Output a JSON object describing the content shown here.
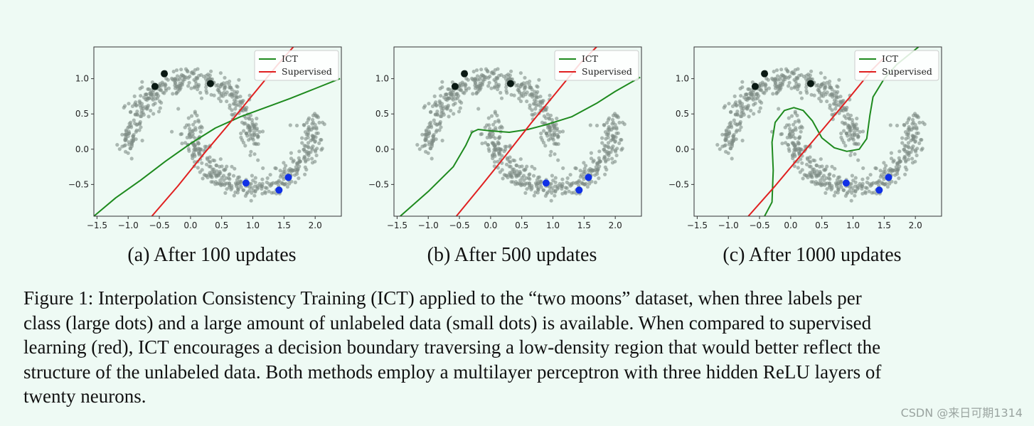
{
  "colors": {
    "unlabeled": "#7f8c85",
    "class0": "#0a1a14",
    "class1": "#1030e6",
    "ict": "#1e8a1e",
    "supervised": "#e02020",
    "plot_bg": "#eefaf4"
  },
  "chart_data": [
    {
      "type": "scatter",
      "xlim": [
        -1.55,
        2.42
      ],
      "ylim": [
        -0.95,
        1.45
      ],
      "x_ticks": [
        -1.5,
        -1.0,
        -0.5,
        0.0,
        0.5,
        1.0,
        1.5,
        2.0
      ],
      "x_tick_labels": [
        "−1.5",
        "−1.0",
        "−0.5",
        "0.0",
        "0.5",
        "1.0",
        "1.5",
        "2.0"
      ],
      "y_ticks": [
        1.0,
        0.5,
        0.0,
        -0.5
      ],
      "y_tick_labels": [
        "1.0",
        "0.5",
        "0.0",
        "−0.5"
      ],
      "legend": {
        "position": "top-right",
        "entries": [
          "ICT",
          "Supervised"
        ]
      },
      "labeled_class0": [
        [
          -0.42,
          1.07
        ],
        [
          -0.57,
          0.89
        ],
        [
          0.32,
          0.93
        ]
      ],
      "labeled_class1": [
        [
          0.89,
          -0.48
        ],
        [
          1.42,
          -0.58
        ],
        [
          1.57,
          -0.4
        ]
      ],
      "series": [
        {
          "name": "ICT",
          "x": [
            -1.55,
            -1.2,
            -0.8,
            -0.4,
            0.0,
            0.4,
            0.8,
            1.2,
            1.6,
            2.0,
            2.4
          ],
          "y": [
            -0.95,
            -0.69,
            -0.44,
            -0.17,
            0.08,
            0.3,
            0.46,
            0.59,
            0.72,
            0.86,
            1.0
          ]
        },
        {
          "name": "Supervised",
          "x": [
            -0.62,
            -0.2,
            0.2,
            0.6,
            1.0,
            1.4,
            1.65
          ],
          "y": [
            -0.95,
            -0.52,
            -0.08,
            0.34,
            0.77,
            1.2,
            1.45
          ]
        }
      ],
      "caption": "(a) After 100 updates"
    },
    {
      "type": "scatter",
      "xlim": [
        -1.55,
        2.42
      ],
      "ylim": [
        -0.95,
        1.45
      ],
      "x_ticks": [
        -1.5,
        -1.0,
        -0.5,
        0.0,
        0.5,
        1.0,
        1.5,
        2.0
      ],
      "x_tick_labels": [
        "−1.5",
        "−1.0",
        "−0.5",
        "0.0",
        "0.5",
        "1.0",
        "1.5",
        "2.0"
      ],
      "y_ticks": [
        1.0,
        0.5,
        0.0,
        -0.5
      ],
      "y_tick_labels": [
        "1.0",
        "0.5",
        "0.0",
        "−0.5"
      ],
      "legend": {
        "position": "top-right",
        "entries": [
          "ICT",
          "Supervised"
        ]
      },
      "labeled_class0": [
        [
          -0.42,
          1.07
        ],
        [
          -0.57,
          0.89
        ],
        [
          0.32,
          0.93
        ]
      ],
      "labeled_class1": [
        [
          0.89,
          -0.48
        ],
        [
          1.42,
          -0.58
        ],
        [
          1.57,
          -0.4
        ]
      ],
      "series": [
        {
          "name": "ICT",
          "x": [
            -1.45,
            -1.0,
            -0.6,
            -0.4,
            -0.3,
            -0.2,
            0.0,
            0.3,
            0.6,
            0.9,
            1.3,
            1.7,
            2.0,
            2.4
          ],
          "y": [
            -0.95,
            -0.6,
            -0.25,
            0.05,
            0.24,
            0.28,
            0.26,
            0.24,
            0.28,
            0.35,
            0.46,
            0.65,
            0.82,
            1.02
          ]
        },
        {
          "name": "Supervised",
          "x": [
            -0.55,
            -0.15,
            0.25,
            0.65,
            1.05,
            1.45,
            1.7
          ],
          "y": [
            -0.95,
            -0.52,
            -0.08,
            0.37,
            0.8,
            1.23,
            1.45
          ]
        }
      ],
      "caption": "(b) After 500 updates"
    },
    {
      "type": "scatter",
      "xlim": [
        -1.55,
        2.42
      ],
      "ylim": [
        -0.95,
        1.45
      ],
      "x_ticks": [
        -1.5,
        -1.0,
        -0.5,
        0.0,
        0.5,
        1.0,
        1.5,
        2.0
      ],
      "x_tick_labels": [
        "−1.5",
        "−1.0",
        "−0.5",
        "0.0",
        "0.5",
        "1.0",
        "1.5",
        "2.0"
      ],
      "y_ticks": [
        1.0,
        0.5,
        0.0,
        -0.5
      ],
      "y_tick_labels": [
        "1.0",
        "0.5",
        "0.0",
        "−0.5"
      ],
      "legend": {
        "position": "top-right",
        "entries": [
          "ICT",
          "Supervised"
        ]
      },
      "labeled_class0": [
        [
          -0.42,
          1.07
        ],
        [
          -0.57,
          0.89
        ],
        [
          0.32,
          0.93
        ]
      ],
      "labeled_class1": [
        [
          0.89,
          -0.48
        ],
        [
          1.42,
          -0.58
        ],
        [
          1.57,
          -0.4
        ]
      ],
      "series": [
        {
          "name": "ICT",
          "x": [
            -0.42,
            -0.3,
            -0.28,
            -0.3,
            -0.25,
            -0.1,
            0.05,
            0.2,
            0.35,
            0.5,
            0.7,
            0.9,
            1.1,
            1.22,
            1.27,
            1.32,
            1.5,
            1.7,
            2.05
          ],
          "y": [
            -0.95,
            -0.75,
            -0.3,
            0.1,
            0.38,
            0.55,
            0.59,
            0.55,
            0.4,
            0.16,
            0.02,
            -0.03,
            0.0,
            0.15,
            0.48,
            0.74,
            1.0,
            1.2,
            1.45
          ]
        },
        {
          "name": "Supervised",
          "x": [
            -0.68,
            -0.25,
            0.15,
            0.55,
            0.95,
            1.3,
            1.5
          ],
          "y": [
            -0.95,
            -0.52,
            -0.1,
            0.32,
            0.74,
            1.12,
            1.3
          ]
        }
      ],
      "caption": "(c) After 1000 updates"
    }
  ],
  "figure_caption_lines": [
    "Figure 1: Interpolation Consistency Training (ICT) applied to the “two moons” dataset, when three labels per",
    "class (large dots) and a large amount of unlabeled data (small dots) is available. When compared to supervised",
    "learning (red), ICT encourages a decision boundary traversing a low-density region that would better reflect the",
    "structure of the unlabeled data. Both methods employ a multilayer perceptron with three hidden ReLU layers of",
    "twenty neurons."
  ],
  "watermark": "CSDN @来日可期1314"
}
